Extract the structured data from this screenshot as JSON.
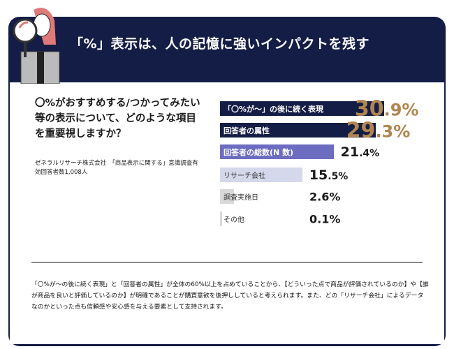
{
  "header": {
    "title": "「%」表示は、人の記憶に強いインパクトを残す"
  },
  "question": "〇%がおすすめする/つかってみたい等の表示について、どのような項目を重要視しますか？",
  "source": "ゼネラルリサーチ株式会社　「商品表示に関する」意識調査有効回答者数1,008人",
  "chart_data": {
    "type": "bar",
    "orientation": "horizontal",
    "categories": [
      "「〇%が～」の後に続く表現",
      "回答者の属性",
      "回答者の総数(N 数)",
      "リサーチ会社",
      "調査実施日",
      "その他"
    ],
    "values": [
      30.9,
      29.3,
      21.4,
      15.5,
      2.6,
      0.1
    ],
    "value_labels": [
      [
        "30",
        ".9%"
      ],
      [
        "29",
        ".3%"
      ],
      [
        "21",
        ".4%"
      ],
      [
        "15",
        ".5%"
      ],
      [
        "2.6%",
        ""
      ],
      [
        "0.1%",
        ""
      ]
    ],
    "unit": "%",
    "colors": [
      "#141d45",
      "#141d45",
      "#6c6cc0",
      "#d5d7ea",
      "#d9d9d9",
      "#d9d9d9"
    ],
    "label_colors": [
      "#ffffff",
      "#ffffff",
      "#ffffff",
      "#333333",
      "#333333",
      "#333333"
    ],
    "value_colors": [
      "#b0854f",
      "#b0854f",
      "#1a1a1a",
      "#1a1a1a",
      "#1a1a1a",
      "#1a1a1a"
    ],
    "xlim": [
      0,
      31
    ]
  },
  "summary": "「〇%が～の後に続く表現」と「回答者の属性」が全体の60%以上を占めていることから、【どういった点で商品が評価されているのか】や【誰が商品を良いと評価しているのか】が明確であることが購買意欲を後押ししていると考えられます。また、どの「リサーチ会社」によるデータなのかといった点も信頼感や安心感を与える要素として支持されます。"
}
